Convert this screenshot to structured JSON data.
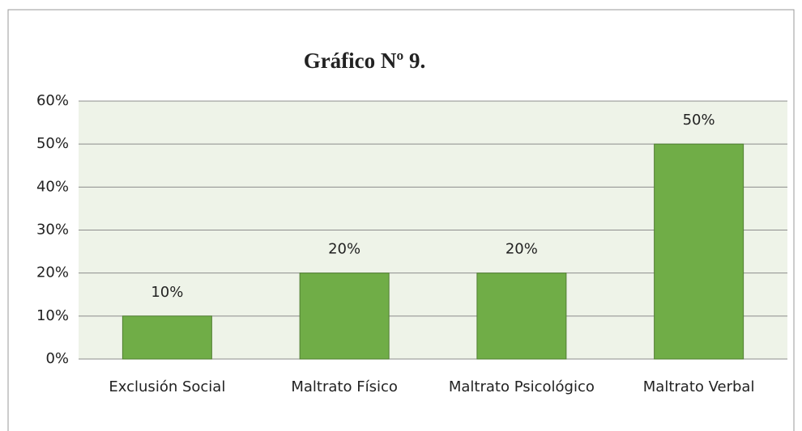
{
  "chart_data": {
    "type": "bar",
    "title": "Gráfico Nº 9.",
    "categories": [
      "Exclusión Social",
      "Maltrato Físico",
      "Maltrato Psicológico",
      "Maltrato Verbal"
    ],
    "values": [
      10,
      20,
      20,
      50
    ],
    "value_labels": [
      "10%",
      "20%",
      "20%",
      "50%"
    ],
    "color": "#70ad47",
    "plot_background": "#eef3e8",
    "ylim": [
      0,
      60
    ],
    "yticks": [
      {
        "value": 0,
        "label": "0%"
      },
      {
        "value": 10,
        "label": "10%"
      },
      {
        "value": 20,
        "label": "20%"
      },
      {
        "value": 30,
        "label": "30%"
      },
      {
        "value": 40,
        "label": "40%"
      },
      {
        "value": 50,
        "label": "50%"
      },
      {
        "value": 60,
        "label": "60%"
      }
    ],
    "grid": true
  }
}
